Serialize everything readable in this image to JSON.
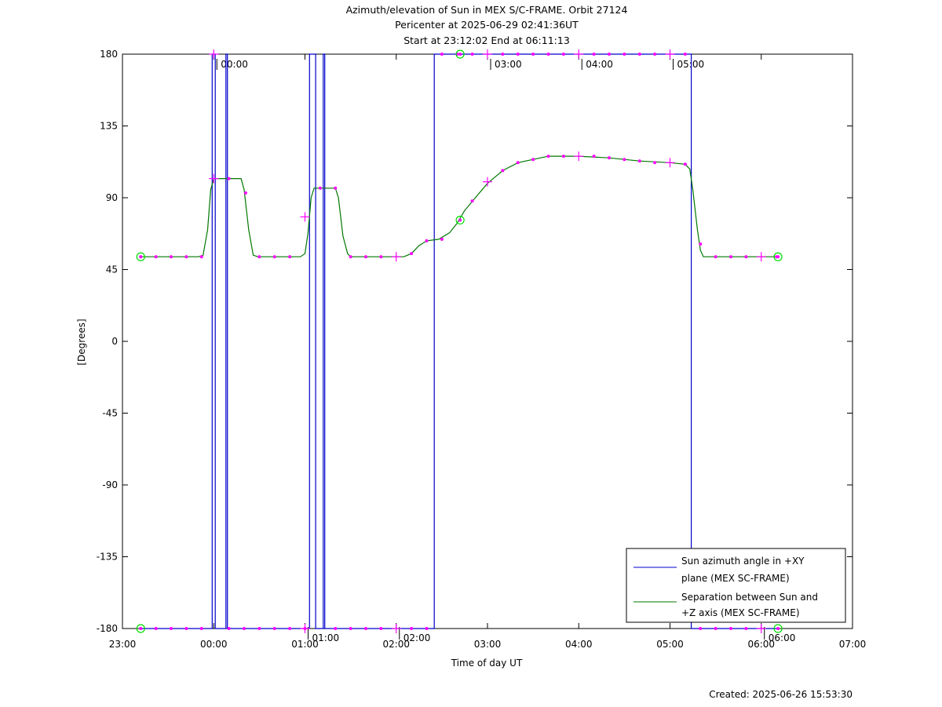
{
  "chart_data": {
    "type": "line",
    "title_lines": [
      "Azimuth/elevation of Sun in MEX S/C-FRAME.  Orbit 27124",
      "Pericenter at 2025-06-29 02:41:36UT",
      "Start at 23:12:02 End at 06:11:13"
    ],
    "xlabel": "Time of day UT",
    "ylabel": "[Degrees]",
    "footer": "Created: 2025-06-26 15:53:30",
    "xlim": [
      "23:00",
      "07:00"
    ],
    "ylim": [
      -180,
      180
    ],
    "grid": false,
    "legend_position": "bottom-right",
    "x_ticks": [
      "23:00",
      "00:00",
      "01:00",
      "02:00",
      "03:00",
      "04:00",
      "05:00",
      "06:00",
      "07:00"
    ],
    "y_ticks": [
      180,
      135,
      90,
      45,
      0,
      -45,
      -90,
      -135,
      -180
    ],
    "hour_markers": [
      {
        "time": "00:00",
        "label": "00:00",
        "edge": "top"
      },
      {
        "time": "01:00",
        "label": "01:00",
        "edge": "bottom"
      },
      {
        "time": "02:00",
        "label": "02:00",
        "edge": "bottom"
      },
      {
        "time": "03:00",
        "label": "03:00",
        "edge": "top"
      },
      {
        "time": "04:00",
        "label": "04:00",
        "edge": "top"
      },
      {
        "time": "05:00",
        "label": "05:00",
        "edge": "top"
      },
      {
        "time": "06:00",
        "label": "06:00",
        "edge": "bottom"
      }
    ],
    "colors": {
      "azimuth": "#0000cc",
      "separation": "#007700",
      "markers": "#ff00ff",
      "endpoints": "#00dd00"
    },
    "series": [
      {
        "name": "Sun azimuth angle in +XY plane (MEX SC-FRAME)",
        "legend_lines": [
          "Sun azimuth angle in +XY",
          "plane (MEX SC-FRAME)"
        ],
        "points": [
          [
            "23:12",
            -180
          ],
          [
            "23:59",
            -180
          ],
          [
            "23:59",
            180
          ],
          [
            "00:01",
            180
          ],
          [
            "00:01",
            -180
          ],
          [
            "00:08",
            -180
          ],
          [
            "00:08",
            180
          ],
          [
            "00:09",
            180
          ],
          [
            "00:09",
            -180
          ],
          [
            "01:03",
            -180
          ],
          [
            "01:03",
            180
          ],
          [
            "01:07",
            180
          ],
          [
            "01:07",
            -180
          ],
          [
            "01:12",
            -180
          ],
          [
            "01:12",
            180
          ],
          [
            "01:13",
            180
          ],
          [
            "01:13",
            -180
          ],
          [
            "02:25",
            -180
          ],
          [
            "02:25",
            180
          ],
          [
            "05:13",
            180
          ],
          [
            "05:14",
            180
          ],
          [
            "05:14",
            -180
          ],
          [
            "06:11",
            -180
          ]
        ]
      },
      {
        "name": "Separation between Sun and +Z axis (MEX SC-FRAME)",
        "legend_lines": [
          "Separation between Sun and",
          "+Z axis (MEX SC-FRAME)"
        ],
        "points": [
          [
            "23:12",
            53
          ],
          [
            "23:50",
            53
          ],
          [
            "23:53",
            54
          ],
          [
            "23:56",
            70
          ],
          [
            "23:58",
            95
          ],
          [
            "00:00",
            102
          ],
          [
            "00:18",
            102
          ],
          [
            "00:20",
            95
          ],
          [
            "00:23",
            70
          ],
          [
            "00:26",
            54
          ],
          [
            "00:29",
            53
          ],
          [
            "00:57",
            53
          ],
          [
            "01:00",
            55
          ],
          [
            "01:02",
            68
          ],
          [
            "01:04",
            90
          ],
          [
            "01:06",
            96
          ],
          [
            "01:20",
            96
          ],
          [
            "01:22",
            90
          ],
          [
            "01:25",
            66
          ],
          [
            "01:28",
            55
          ],
          [
            "01:30",
            53
          ],
          [
            "02:05",
            53
          ],
          [
            "02:10",
            55
          ],
          [
            "02:15",
            60
          ],
          [
            "02:20",
            63
          ],
          [
            "02:28",
            64
          ],
          [
            "02:35",
            68
          ],
          [
            "02:40",
            74
          ],
          [
            "02:45",
            82
          ],
          [
            "02:52",
            90
          ],
          [
            "03:00",
            99
          ],
          [
            "03:10",
            107
          ],
          [
            "03:20",
            112
          ],
          [
            "03:30",
            114
          ],
          [
            "03:40",
            116
          ],
          [
            "04:00",
            116
          ],
          [
            "04:20",
            115
          ],
          [
            "04:40",
            113
          ],
          [
            "05:00",
            112
          ],
          [
            "05:10",
            111
          ],
          [
            "05:13",
            108
          ],
          [
            "05:15",
            95
          ],
          [
            "05:18",
            70
          ],
          [
            "05:20",
            57
          ],
          [
            "05:22",
            53
          ],
          [
            "06:11",
            53
          ]
        ]
      }
    ],
    "markers": {
      "dots": [
        [
          "23:12",
          53
        ],
        [
          "23:22",
          53
        ],
        [
          "23:32",
          53
        ],
        [
          "23:42",
          53
        ],
        [
          "23:52",
          53
        ],
        [
          "00:10",
          102
        ],
        [
          "00:21",
          93
        ],
        [
          "00:30",
          53
        ],
        [
          "00:40",
          53
        ],
        [
          "00:50",
          53
        ],
        [
          "01:10",
          96
        ],
        [
          "01:20",
          96
        ],
        [
          "01:30",
          53
        ],
        [
          "01:40",
          53
        ],
        [
          "01:50",
          53
        ],
        [
          "02:10",
          55
        ],
        [
          "02:20",
          63
        ],
        [
          "02:30",
          64
        ],
        [
          "02:50",
          88
        ],
        [
          "03:10",
          107
        ],
        [
          "03:20",
          112
        ],
        [
          "03:30",
          114
        ],
        [
          "03:40",
          116
        ],
        [
          "03:50",
          116
        ],
        [
          "04:10",
          116
        ],
        [
          "04:20",
          115
        ],
        [
          "04:30",
          114
        ],
        [
          "04:40",
          113
        ],
        [
          "04:50",
          112
        ],
        [
          "05:10",
          111
        ],
        [
          "05:20",
          61
        ],
        [
          "05:30",
          53
        ],
        [
          "05:40",
          53
        ],
        [
          "05:50",
          53
        ],
        [
          "06:10",
          53
        ],
        [
          "23:22",
          -180
        ],
        [
          "23:32",
          -180
        ],
        [
          "23:42",
          -180
        ],
        [
          "23:52",
          -180
        ],
        [
          "00:10",
          -180
        ],
        [
          "00:20",
          -180
        ],
        [
          "00:30",
          -180
        ],
        [
          "00:40",
          -180
        ],
        [
          "00:50",
          -180
        ],
        [
          "01:00",
          -180
        ],
        [
          "01:20",
          -180
        ],
        [
          "01:30",
          -180
        ],
        [
          "01:40",
          -180
        ],
        [
          "01:50",
          -180
        ],
        [
          "02:10",
          -180
        ],
        [
          "02:20",
          -180
        ],
        [
          "02:30",
          180
        ],
        [
          "02:40",
          180
        ],
        [
          "02:50",
          180
        ],
        [
          "03:10",
          180
        ],
        [
          "03:20",
          180
        ],
        [
          "03:30",
          180
        ],
        [
          "03:40",
          180
        ],
        [
          "03:50",
          180
        ],
        [
          "04:10",
          180
        ],
        [
          "04:20",
          180
        ],
        [
          "04:30",
          180
        ],
        [
          "04:40",
          180
        ],
        [
          "04:50",
          180
        ],
        [
          "05:10",
          180
        ],
        [
          "05:20",
          -180
        ],
        [
          "05:30",
          -180
        ],
        [
          "05:40",
          -180
        ],
        [
          "05:50",
          -180
        ]
      ],
      "crosses": [
        [
          "00:00",
          102
        ],
        [
          "01:00",
          78
        ],
        [
          "02:00",
          53
        ],
        [
          "03:00",
          100
        ],
        [
          "04:00",
          116
        ],
        [
          "05:00",
          112
        ],
        [
          "06:00",
          53
        ],
        [
          "00:00",
          180
        ],
        [
          "03:00",
          180
        ],
        [
          "04:00",
          180
        ],
        [
          "05:00",
          180
        ],
        [
          "01:00",
          -180
        ],
        [
          "02:00",
          -180
        ],
        [
          "06:00",
          -180
        ]
      ],
      "circles": [
        [
          "23:12",
          53
        ],
        [
          "23:12",
          -180
        ],
        [
          "02:42",
          76
        ],
        [
          "02:42",
          180
        ],
        [
          "06:11",
          53
        ],
        [
          "06:11",
          -180
        ]
      ]
    }
  }
}
